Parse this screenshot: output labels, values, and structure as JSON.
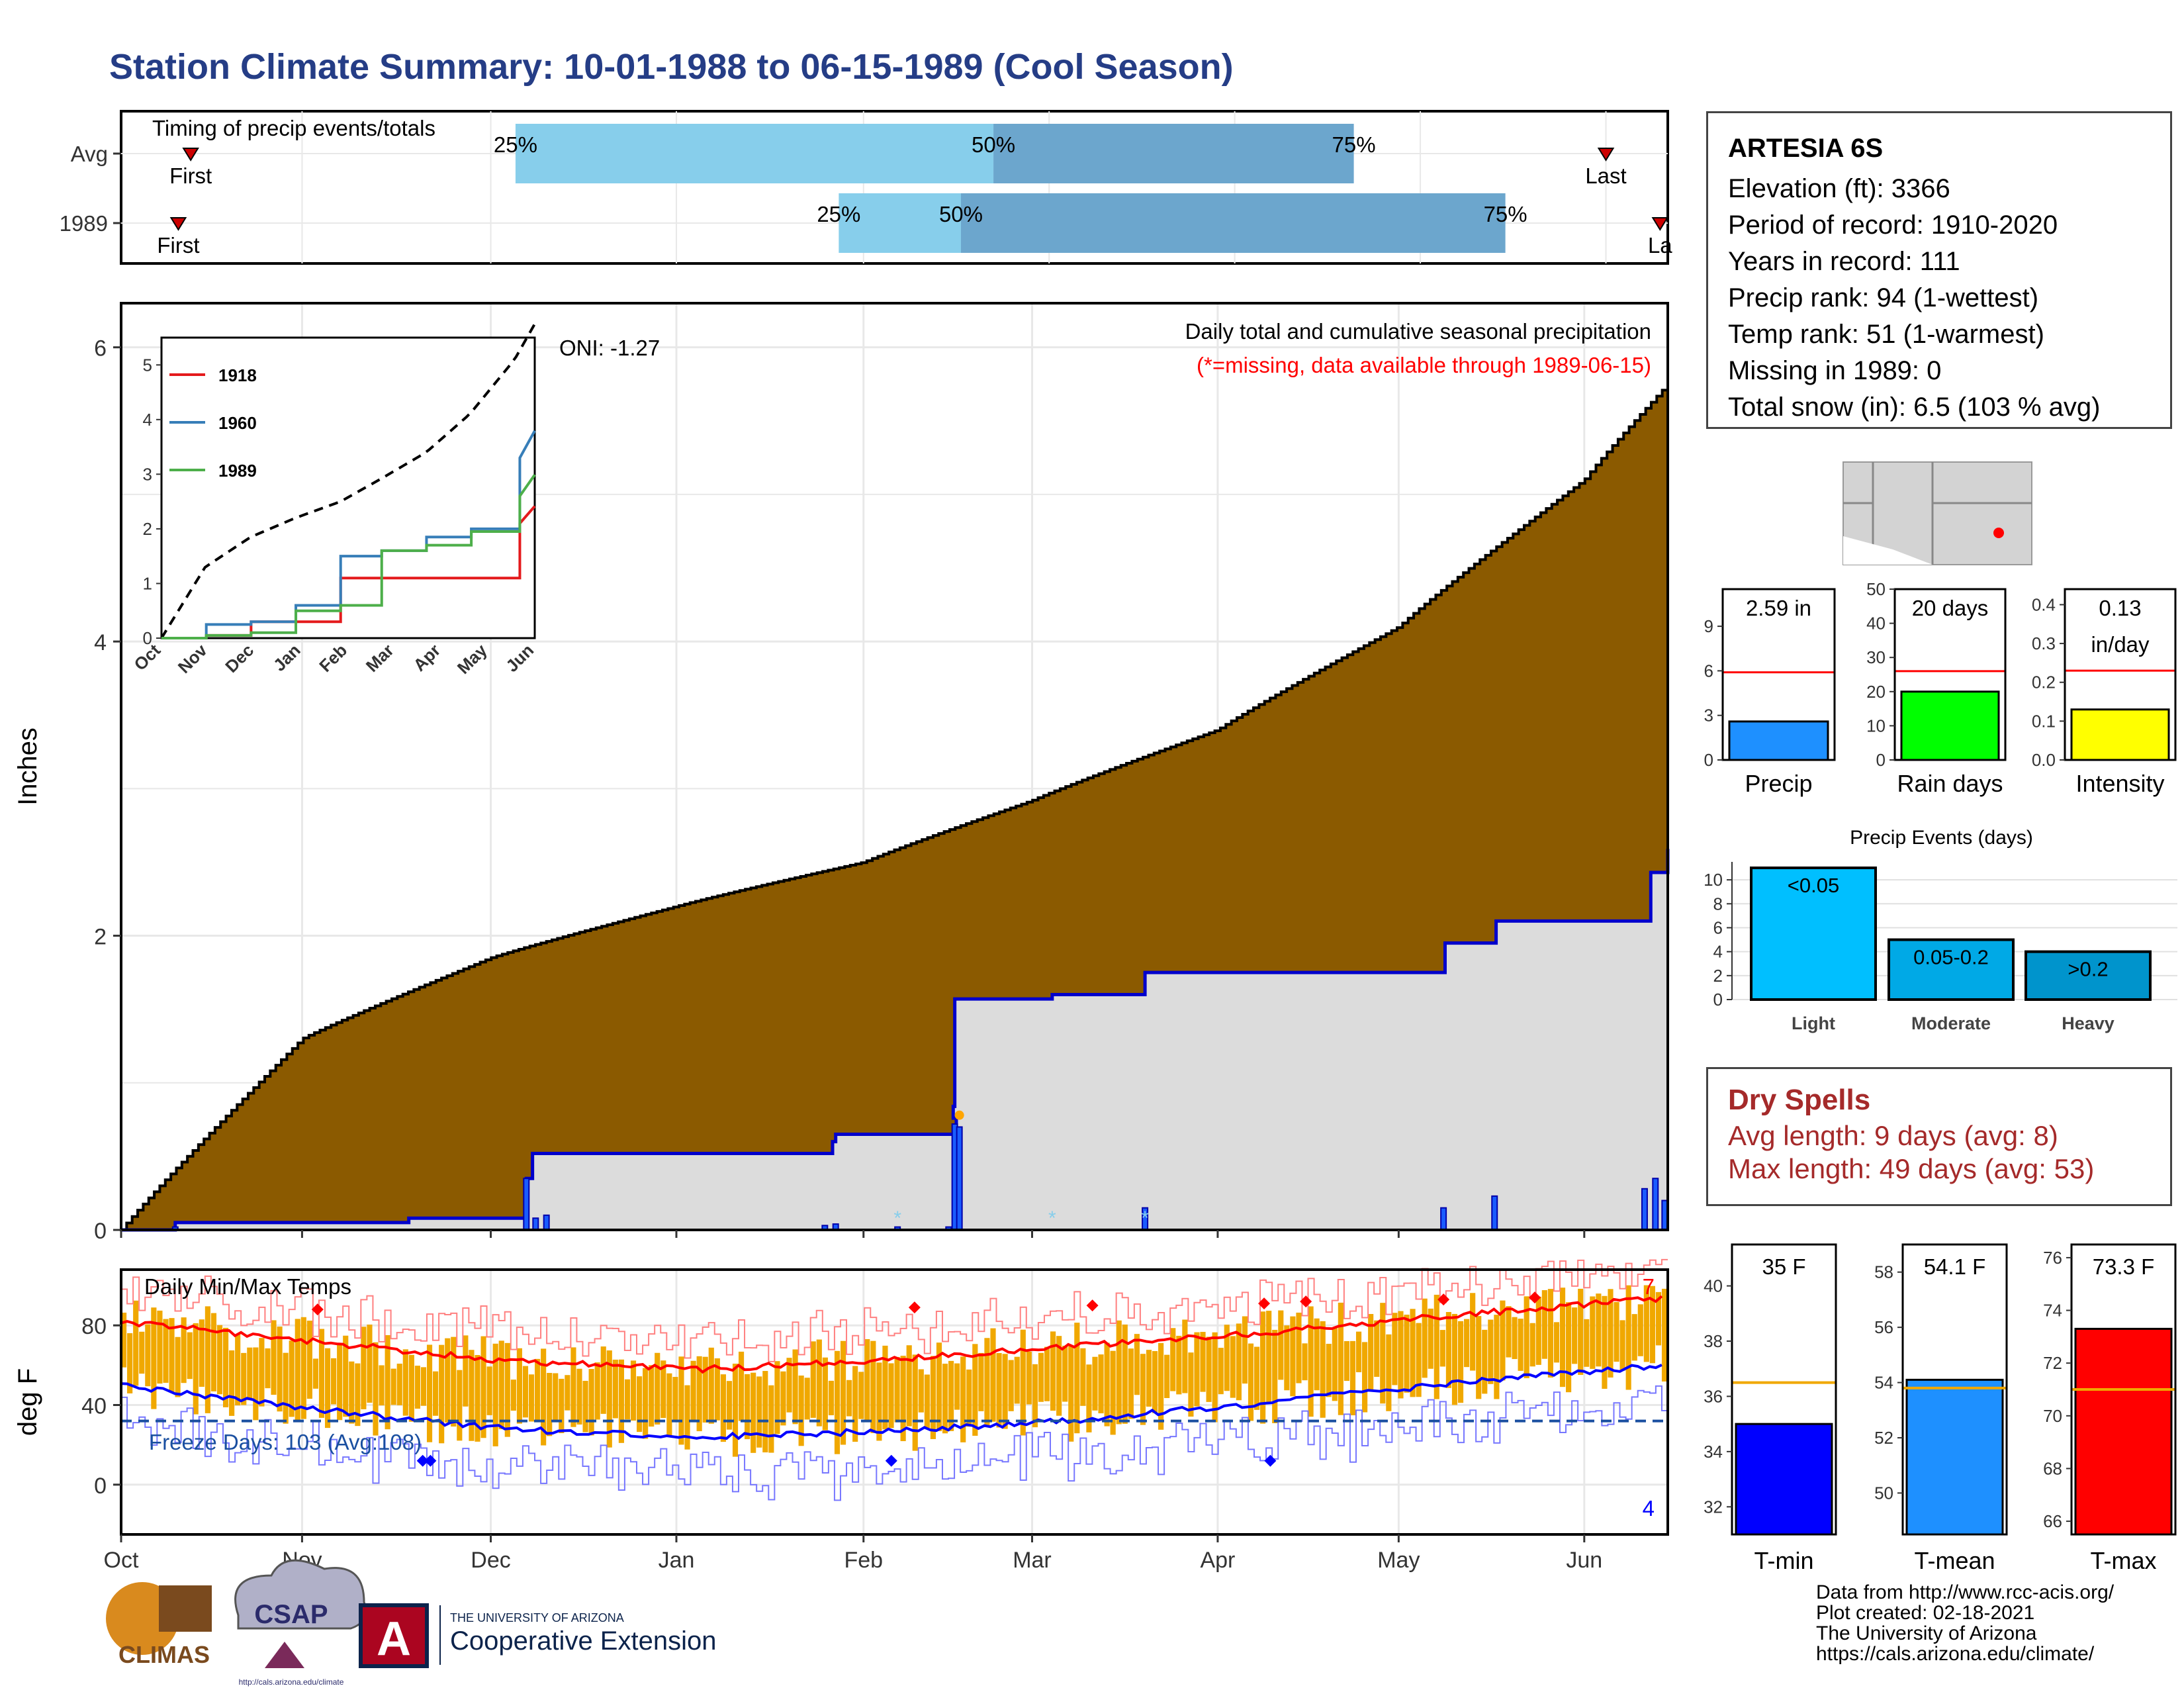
{
  "title": "Station Climate Summary: 10-01-1988 to 06-15-1989 (Cool Season)",
  "timing": {
    "label": "Timing of precip events/totals",
    "rows": [
      {
        "name": "Avg",
        "first_label": "First",
        "last_label": "Last",
        "first": 0.045,
        "last": 0.96,
        "p25": 0.255,
        "p50": 0.564,
        "p75": 0.797
      },
      {
        "name": "1989",
        "first_label": "First",
        "last_label": "La",
        "first": 0.037,
        "last": 0.995,
        "p25": 0.464,
        "p50": 0.543,
        "p75": 0.895
      }
    ],
    "pct_labels": [
      "25%",
      "50%",
      "75%"
    ],
    "colors": {
      "light": "#87ceeb",
      "dark": "#6ca6cd",
      "marker": "#cc0000"
    }
  },
  "main_chart": {
    "ylabel": "Inches",
    "annotation_title": "Daily total and cumulative seasonal precipitation",
    "annotation_missing": "(*=missing, data available through 1989-06-15)",
    "oni": "ONI: -1.27",
    "yticks": [
      "0",
      "2",
      "4",
      "6"
    ]
  },
  "inset": {
    "legend": [
      "1918",
      "1960",
      "1989"
    ],
    "legend_colors": [
      "#e41a1c",
      "#377eb8",
      "#4daf4a"
    ],
    "yticks": [
      "0",
      "1",
      "2",
      "3",
      "4",
      "5"
    ],
    "xticks": [
      "Oct",
      "Nov",
      "Dec",
      "Jan",
      "Feb",
      "Mar",
      "Apr",
      "May",
      "Jun"
    ]
  },
  "temp_chart": {
    "ylabel": "deg F",
    "label": "Daily Min/Max Temps",
    "freeze": "Freeze Days: 103 (Avg:108)",
    "yticks": [
      "0",
      "40",
      "80"
    ],
    "count_high": "7",
    "count_low": "4",
    "xticks": [
      "Oct",
      "Nov",
      "Dec",
      "Jan",
      "Feb",
      "Mar",
      "Apr",
      "May",
      "Jun"
    ]
  },
  "info": {
    "station": "ARTESIA 6S",
    "lines": [
      "Elevation (ft): 3366",
      "Period of record: 1910-2020",
      "Years in record: 111",
      "Precip rank: 94 (1-wettest)",
      "Temp rank: 51 (1-warmest)",
      "Missing in 1989: 0",
      "Total snow (in): 6.5 (103 % avg)"
    ]
  },
  "mini_bars": [
    {
      "name": "Precip",
      "value_label": "2.59 in",
      "value_label2": "",
      "value": 2.59,
      "avg": 5.9,
      "max": 11.5,
      "ticks": [
        "0",
        "3",
        "6",
        "9"
      ],
      "tick_vals": [
        0,
        3,
        6,
        9
      ],
      "color": "#1e90ff"
    },
    {
      "name": "Rain days",
      "value_label": "20 days",
      "value_label2": "",
      "value": 20,
      "avg": 26,
      "max": 50,
      "ticks": [
        "0",
        "10",
        "20",
        "30",
        "40",
        "50"
      ],
      "tick_vals": [
        0,
        10,
        20,
        30,
        40,
        50
      ],
      "color": "#00ff00"
    },
    {
      "name": "Intensity",
      "value_label": "0.13",
      "value_label2": "in/day",
      "value": 0.13,
      "avg": 0.23,
      "max": 0.44,
      "ticks": [
        "0.0",
        "0.1",
        "0.2",
        "0.3",
        "0.4"
      ],
      "tick_vals": [
        0,
        0.1,
        0.2,
        0.3,
        0.4
      ],
      "color": "#ffff00"
    }
  ],
  "precip_events": {
    "title": "Precip Events (days)",
    "categories": [
      "Light",
      "Moderate",
      "Heavy"
    ],
    "labels": [
      "<0.05",
      "0.05-0.2",
      ">0.2"
    ],
    "values": [
      11,
      5,
      4
    ],
    "colors": [
      "#00bfff",
      "#00a9e6",
      "#0094cc"
    ],
    "yticks": [
      "0",
      "2",
      "4",
      "6",
      "8",
      "10"
    ]
  },
  "dry_spells": {
    "title": "Dry Spells",
    "avg": "Avg length: 9 days (avg: 8)",
    "max": "Max length: 49 days (avg: 53)"
  },
  "temp_bars": [
    {
      "name": "T-min",
      "value_label": "35 F",
      "value": 35,
      "avg": 36.5,
      "min": 31,
      "max": 41.5,
      "ticks": [
        "32",
        "34",
        "36",
        "38",
        "40"
      ],
      "tick_vals": [
        32,
        34,
        36,
        38,
        40
      ],
      "color": "#0000ff"
    },
    {
      "name": "T-mean",
      "value_label": "54.1 F",
      "value": 54.1,
      "avg": 53.8,
      "min": 48.5,
      "max": 59,
      "ticks": [
        "50",
        "52",
        "54",
        "56",
        "58"
      ],
      "tick_vals": [
        50,
        52,
        54,
        56,
        58
      ],
      "color": "#1e90ff"
    },
    {
      "name": "T-max",
      "value_label": "73.3 F",
      "value": 73.3,
      "avg": 71,
      "min": 65.5,
      "max": 76.5,
      "ticks": [
        "66",
        "68",
        "70",
        "72",
        "74",
        "76"
      ],
      "tick_vals": [
        66,
        68,
        70,
        72,
        74,
        76
      ],
      "color": "#ff0000"
    }
  ],
  "credits": [
    "Data from http://www.rcc-acis.org/",
    "Plot created: 02-18-2021",
    "The University of Arizona",
    "https://cals.arizona.edu/climate/"
  ],
  "logos": {
    "climas": "CLIMAS",
    "csap": "CSAP",
    "csap_url": "http://cals.arizona.edu/climate",
    "ua_line1": "THE UNIVERSITY OF ARIZONA",
    "ua_line2": "Cooperative Extension"
  },
  "chart_data": [
    {
      "type": "area",
      "title": "Daily total and cumulative seasonal precipitation",
      "ylabel": "Inches",
      "ylim": [
        0,
        6.2
      ],
      "x": [
        "1988-10-01",
        "1988-11-01",
        "1988-12-01",
        "1989-01-01",
        "1989-02-01",
        "1989-03-01",
        "1989-04-01",
        "1989-05-01",
        "1989-06-01",
        "1989-06-15"
      ],
      "series": [
        {
          "name": "1989 cumulative",
          "values": [
            0.0,
            0.05,
            0.5,
            0.55,
            0.6,
            1.6,
            1.75,
            1.95,
            2.1,
            2.59
          ]
        },
        {
          "name": "Avg cumulative",
          "values": [
            0.0,
            1.3,
            1.85,
            2.2,
            2.5,
            2.92,
            3.4,
            4.1,
            5.1,
            5.75
          ]
        }
      ],
      "grid": true
    },
    {
      "type": "line",
      "x": [
        "Oct",
        "Nov",
        "Dec",
        "Jan",
        "Feb",
        "Mar",
        "Apr",
        "May",
        "Jun"
      ],
      "ylim": [
        0,
        5.5
      ],
      "series": [
        {
          "name": "1918",
          "values": [
            0.0,
            0.05,
            0.3,
            0.3,
            1.1,
            1.1,
            1.1,
            1.1,
            2.1
          ]
        },
        {
          "name": "1960",
          "values": [
            0.0,
            0.25,
            0.3,
            0.6,
            1.5,
            1.6,
            1.85,
            2.0,
            3.3
          ]
        },
        {
          "name": "1989",
          "values": [
            0.0,
            0.05,
            0.1,
            0.5,
            0.6,
            1.6,
            1.7,
            1.95,
            2.6
          ]
        }
      ]
    },
    {
      "type": "line",
      "title": "Daily Min/Max Temps",
      "ylabel": "deg F",
      "ylim": [
        -25,
        108
      ],
      "x": [
        "Oct",
        "Nov",
        "Dec",
        "Jan",
        "Feb",
        "Mar",
        "Apr",
        "May",
        "Jun"
      ],
      "series": [
        {
          "name": "Avg max",
          "values": [
            82,
            72,
            62,
            58,
            63,
            70,
            77,
            86,
            94
          ]
        },
        {
          "name": "Avg min",
          "values": [
            50,
            38,
            28,
            24,
            27,
            33,
            42,
            52,
            60
          ]
        }
      ]
    }
  ]
}
